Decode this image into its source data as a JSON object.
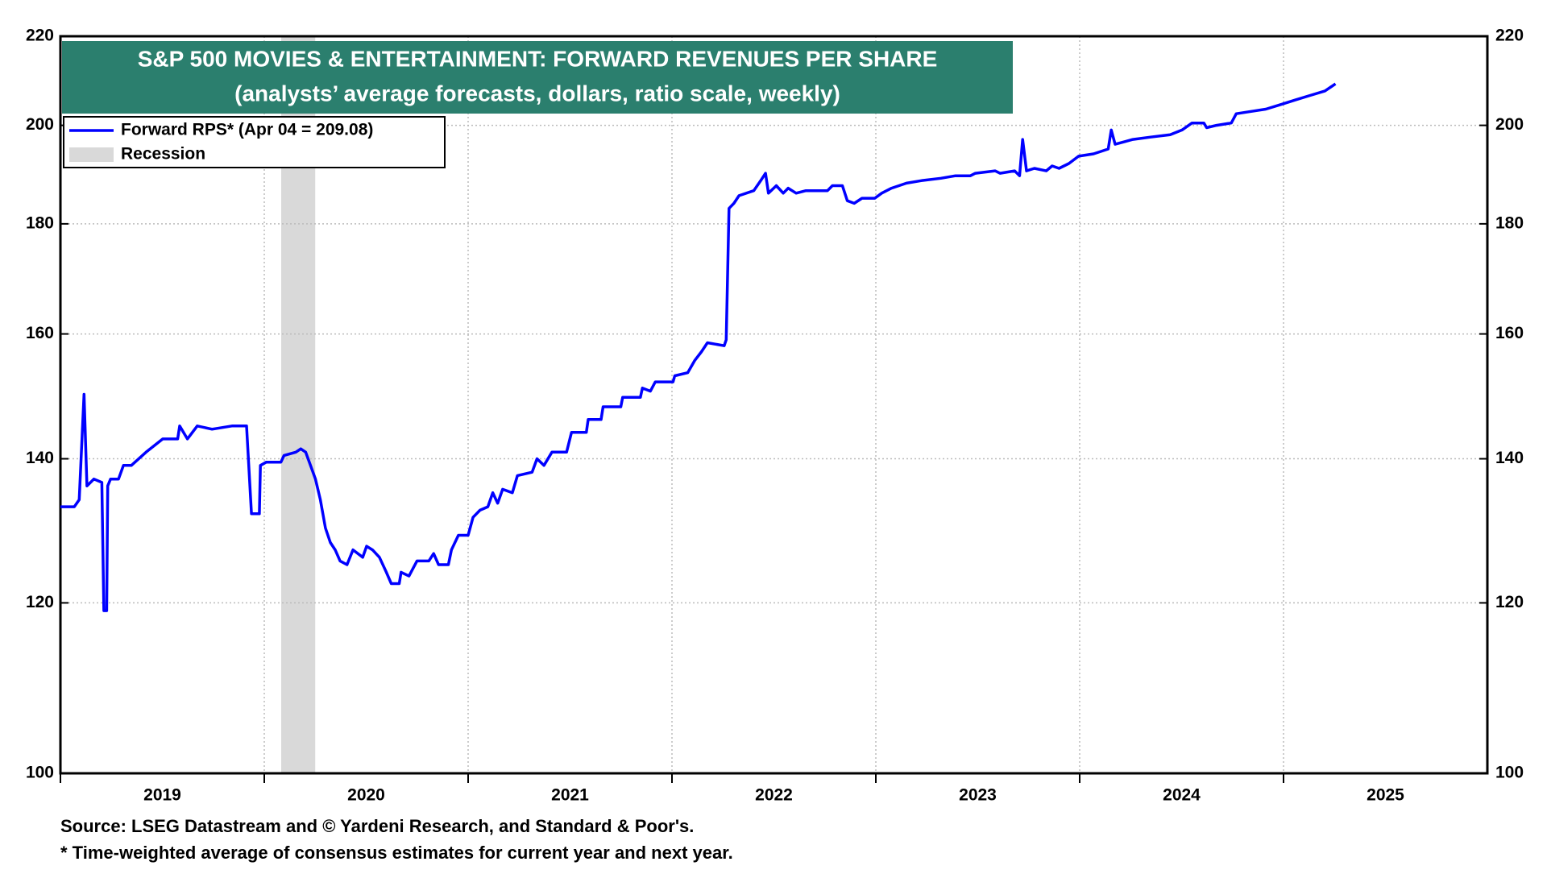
{
  "chart_data": {
    "type": "line",
    "title": "S&P 500 MOVIES & ENTERTAINMENT: FORWARD REVENUES PER SHARE",
    "subtitle": "(analysts’ average forecasts, dollars, ratio scale, weekly)",
    "log_scale": true,
    "grid": true,
    "legend": "upper left",
    "xlim": [
      2019,
      2026
    ],
    "xticks": [
      {
        "value": 2019,
        "label": "2019"
      },
      {
        "value": 2020,
        "label": "2020"
      },
      {
        "value": 2021,
        "label": "2021"
      },
      {
        "value": 2022,
        "label": "2022"
      },
      {
        "value": 2023,
        "label": "2023"
      },
      {
        "value": 2024,
        "label": "2024"
      },
      {
        "value": 2025,
        "label": "2025"
      }
    ],
    "ylim": [
      100,
      220
    ],
    "yticks": [
      100,
      120,
      140,
      160,
      180,
      200,
      220
    ],
    "shaded": {
      "name": "Recession",
      "color": "#d9d9d9",
      "ranges": [
        [
          2020.083,
          2020.25
        ]
      ]
    },
    "series": [
      {
        "name": "Forward RPS* (Apr 04 = 209.08)",
        "color": "#0000ff",
        "x": [
          2019.0,
          2019.068,
          2019.092,
          2019.116,
          2019.13,
          2019.164,
          2019.203,
          2019.213,
          2019.227,
          2019.232,
          2019.246,
          2019.285,
          2019.309,
          2019.348,
          2019.42,
          2019.502,
          2019.575,
          2019.585,
          2019.623,
          2019.671,
          2019.744,
          2019.841,
          2019.913,
          2019.937,
          2019.976,
          2019.981,
          2020.01,
          2020.082,
          2020.097,
          2020.155,
          2020.179,
          2020.203,
          2020.227,
          2020.251,
          2020.275,
          2020.3,
          2020.324,
          2020.348,
          2020.372,
          2020.406,
          2020.435,
          2020.483,
          2020.502,
          2020.531,
          2020.565,
          2020.599,
          2020.623,
          2020.662,
          2020.671,
          2020.71,
          2020.749,
          2020.807,
          2020.831,
          2020.855,
          2020.903,
          2020.918,
          2020.952,
          2021.0,
          2021.024,
          2021.058,
          2021.097,
          2021.121,
          2021.145,
          2021.169,
          2021.217,
          2021.242,
          2021.314,
          2021.338,
          2021.372,
          2021.411,
          2021.483,
          2021.507,
          2021.58,
          2021.589,
          2021.652,
          2021.662,
          2021.749,
          2021.758,
          2021.845,
          2021.855,
          2021.894,
          2021.918,
          2022.005,
          2022.014,
          2022.077,
          2022.111,
          2022.145,
          2022.174,
          2022.256,
          2022.266,
          2022.28,
          2022.304,
          2022.329,
          2022.401,
          2022.435,
          2022.459,
          2022.473,
          2022.512,
          2022.546,
          2022.57,
          2022.609,
          2022.657,
          2022.763,
          2022.787,
          2022.836,
          2022.86,
          2022.894,
          2022.932,
          2022.995,
          2023.029,
          2023.077,
          2023.15,
          2023.222,
          2023.319,
          2023.391,
          2023.464,
          2023.488,
          2023.585,
          2023.609,
          2023.681,
          2023.705,
          2023.72,
          2023.739,
          2023.778,
          2023.836,
          2023.865,
          2023.899,
          2023.947,
          2023.995,
          2024.068,
          2024.14,
          2024.155,
          2024.174,
          2024.261,
          2024.348,
          2024.444,
          2024.502,
          2024.551,
          2024.609,
          2024.623,
          2024.671,
          2024.744,
          2024.768,
          2024.841,
          2024.913,
          2024.986,
          2025.058,
          2025.13,
          2025.203,
          2025.255
        ],
        "values": [
          133,
          133,
          134,
          150,
          136,
          137,
          136.5,
          119,
          119,
          136,
          137,
          137,
          139,
          139,
          141,
          143,
          143,
          145,
          143,
          145,
          144.5,
          145,
          145,
          132,
          132,
          139,
          139.5,
          139.5,
          140.5,
          141,
          141.5,
          141,
          139,
          137,
          134,
          130,
          128,
          127,
          125.5,
          125,
          127,
          126,
          127.5,
          127,
          126,
          124,
          122.5,
          122.5,
          124,
          123.5,
          125.5,
          125.5,
          126.5,
          125,
          125,
          127,
          129,
          129,
          131.5,
          132.5,
          133,
          135,
          133.5,
          135.5,
          135,
          137.5,
          138,
          140,
          139,
          141,
          141,
          144,
          144,
          146,
          146,
          148,
          148,
          149.5,
          149.5,
          151,
          150.5,
          152,
          152,
          153,
          153.5,
          155.5,
          157,
          158.5,
          158,
          159,
          183,
          184,
          185.5,
          186.5,
          188.5,
          190,
          186,
          187.5,
          186,
          187,
          186,
          186.5,
          186.5,
          187.5,
          187.5,
          184.5,
          184,
          185,
          185,
          186,
          187,
          188,
          188.5,
          189,
          189.5,
          189.5,
          190,
          190.5,
          190,
          190.5,
          189.5,
          197,
          190.5,
          191,
          190.5,
          191.5,
          191,
          192,
          193.5,
          194,
          195,
          199,
          196,
          197,
          197.5,
          198,
          199,
          200.5,
          200.5,
          199.5,
          200,
          200.5,
          202.5,
          203,
          203.5,
          204.5,
          205.5,
          206.5,
          207.5,
          209.08
        ]
      }
    ],
    "notes": [
      "Source: LSEG Datastream and © Yardeni Research, and Standard & Poor's.",
      "* Time-weighted average of consensus estimates for current year and next year."
    ]
  }
}
